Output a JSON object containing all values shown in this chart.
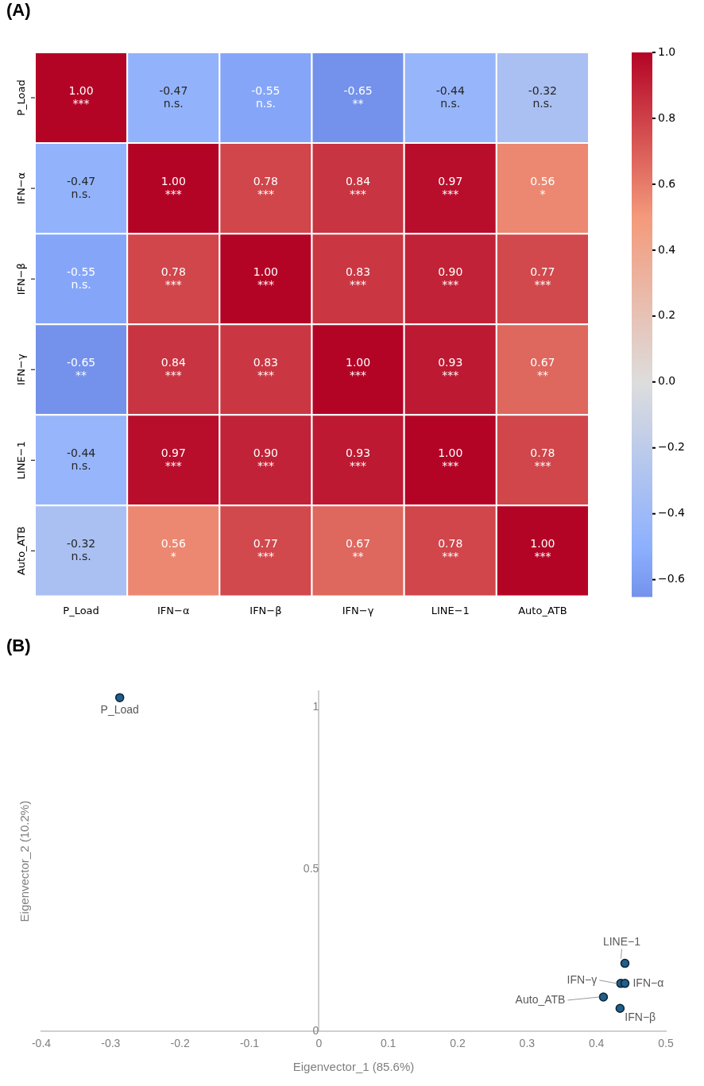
{
  "chart_data": [
    {
      "type": "heatmap",
      "title": "(A)",
      "categories": [
        "P_Load",
        "IFN−α",
        "IFN−β",
        "IFN−γ",
        "LINE−1",
        "Auto_ATB"
      ],
      "y_categories": [
        "P_Load",
        "IFN−α",
        "IFN−β",
        "IFN−γ",
        "LINE−1",
        "Auto_ATB"
      ],
      "cells": [
        [
          1.0,
          -0.47,
          -0.55,
          -0.65,
          -0.44,
          -0.32
        ],
        [
          -0.47,
          1.0,
          0.78,
          0.84,
          0.97,
          0.56
        ],
        [
          -0.55,
          0.78,
          1.0,
          0.83,
          0.9,
          0.77
        ],
        [
          -0.65,
          0.84,
          0.83,
          1.0,
          0.93,
          0.67
        ],
        [
          -0.44,
          0.97,
          0.9,
          0.93,
          1.0,
          0.78
        ],
        [
          -0.32,
          0.56,
          0.77,
          0.67,
          0.78,
          1.0
        ]
      ],
      "cell_labels": [
        [
          "1.00\n***",
          "-0.47\nn.s.",
          "-0.55\nn.s.",
          "-0.65\n**",
          "-0.44\nn.s.",
          "-0.32\nn.s."
        ],
        [
          "-0.47\nn.s.",
          "1.00\n***",
          "0.78\n***",
          "0.84\n***",
          "0.97\n***",
          "0.56\n*"
        ],
        [
          "-0.55\nn.s.",
          "0.78\n***",
          "1.00\n***",
          "0.83\n***",
          "0.90\n***",
          "0.77\n***"
        ],
        [
          "-0.65\n**",
          "0.84\n***",
          "0.83\n***",
          "1.00\n***",
          "0.93\n***",
          "0.67\n**"
        ],
        [
          "-0.44\nn.s.",
          "0.97\n***",
          "0.90\n***",
          "0.93\n***",
          "1.00\n***",
          "0.78\n***"
        ],
        [
          "-0.32\nn.s.",
          "0.56\n*",
          "0.77\n***",
          "0.67\n**",
          "0.78\n***",
          "1.00\n***"
        ]
      ],
      "clim": [
        -0.65,
        1.0
      ],
      "cticks": [
        {
          "value": -0.6,
          "label": "−0.6"
        },
        {
          "value": -0.4,
          "label": "−0.4"
        },
        {
          "value": -0.2,
          "label": "−0.2"
        },
        {
          "value": 0,
          "label": "0.0"
        },
        {
          "value": 0.2,
          "label": "0.2"
        },
        {
          "value": 0.4,
          "label": "0.4"
        },
        {
          "value": 0.6,
          "label": "0.6"
        },
        {
          "value": 0.8,
          "label": "0.8"
        },
        {
          "value": 1,
          "label": "1.0"
        }
      ]
    },
    {
      "type": "scatter",
      "title": "(B)",
      "xlabel": "Eigenvector_1 (85.6%)",
      "ylabel": "Eigenvector_2 (10.2%)",
      "series": [
        {
          "color": "#1f5f8b",
          "x": [
            -0.287,
            0.441,
            0.435,
            0.441,
            0.41,
            0.434
          ],
          "values": [
            1.03,
            0.21,
            0.148,
            0.148,
            0.106,
            0.071
          ]
        }
      ],
      "xlim": [
        -0.4,
        0.5
      ],
      "xticks": [
        -0.4,
        -0.3,
        -0.2,
        -0.1,
        0,
        0.1,
        0.2,
        0.3,
        0.4,
        0.5
      ],
      "ylim": [
        0,
        1.05
      ],
      "yticks": [
        0,
        0.5,
        1
      ],
      "marker": "circle",
      "grid": false,
      "annotations": [
        {
          "text": "P_Load",
          "x": -0.287,
          "y": 1.03
        },
        {
          "text": "LINE−1",
          "x": 0.441,
          "y": 0.21
        },
        {
          "text": "IFN−γ",
          "x": 0.435,
          "y": 0.148
        },
        {
          "text": "IFN−α",
          "x": 0.441,
          "y": 0.148
        },
        {
          "text": "Auto_ATB",
          "x": 0.41,
          "y": 0.106
        },
        {
          "text": "IFN−β",
          "x": 0.434,
          "y": 0.071
        }
      ]
    }
  ]
}
